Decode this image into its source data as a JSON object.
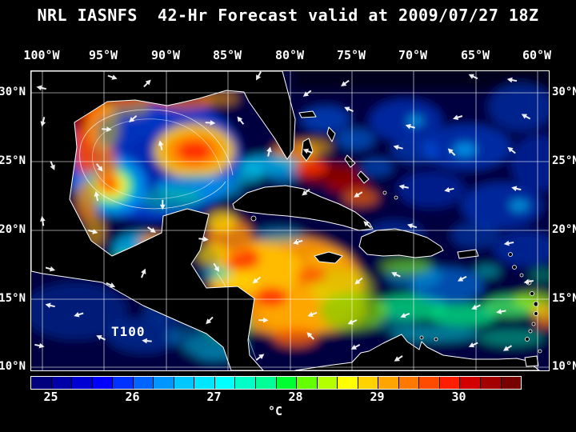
{
  "title": "NRL IASNFS  42-Hr Forecast valid at 2009/07/27 18Z",
  "axes": {
    "longitude_labels": [
      "100°W",
      "95°W",
      "90°W",
      "85°W",
      "80°W",
      "75°W",
      "70°W",
      "65°W",
      "60°W"
    ],
    "latitude_labels": [
      "30°N",
      "25°N",
      "20°N",
      "15°N",
      "10°N"
    ]
  },
  "map": {
    "model_label": "T100"
  },
  "colorbar": {
    "units": "°C",
    "tick_labels": [
      "25",
      "26",
      "27",
      "28",
      "29",
      "30"
    ],
    "colors": [
      "#00007f",
      "#0000a8",
      "#0000d2",
      "#0000fc",
      "#0032ff",
      "#0064ff",
      "#0096ff",
      "#00c8ff",
      "#00e6ff",
      "#00ffff",
      "#00ffc8",
      "#00ff96",
      "#00ff32",
      "#64ff00",
      "#b4ff00",
      "#ffff00",
      "#ffd200",
      "#ffa500",
      "#ff7800",
      "#ff4b00",
      "#ff1e00",
      "#d20000",
      "#a50000",
      "#780000"
    ]
  },
  "colors": {
    "background": "#000000",
    "text": "#ffffff",
    "grid": "#ffffff",
    "wind_arrow": "#ffffff",
    "ocean_base": "#000240",
    "land": "#000000",
    "coastline": "#ffffff"
  }
}
